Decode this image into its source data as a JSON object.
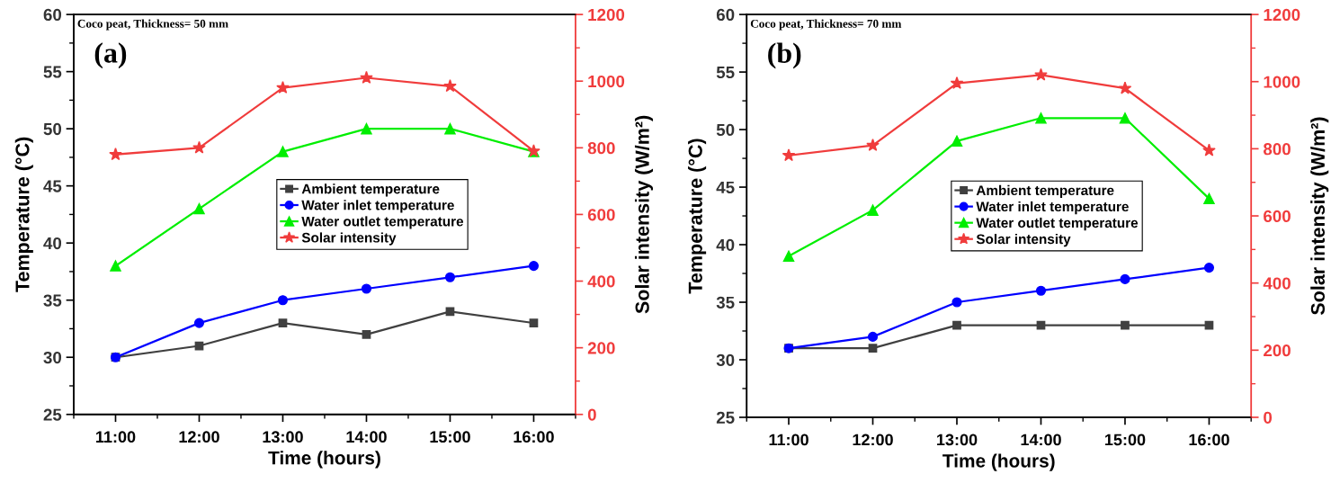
{
  "chart_data": [
    {
      "type": "line",
      "xlabel": "Time (hours)",
      "ylabel": "Temperature (°C)",
      "y2label": "Solar intensity (W/m²)",
      "annotations": [
        "Coco peat, Thickness= 50 mm",
        "(a)"
      ],
      "x": [
        11,
        12,
        13,
        14,
        15,
        16
      ],
      "xlim": [
        10.5,
        16.5
      ],
      "xticks": [
        {
          "value": 11,
          "label": "11:00"
        },
        {
          "value": 12,
          "label": "12:00"
        },
        {
          "value": 13,
          "label": "13:00"
        },
        {
          "value": 14,
          "label": "14:00"
        },
        {
          "value": 15,
          "label": "15:00"
        },
        {
          "value": 16,
          "label": "16:00"
        }
      ],
      "ylim": [
        25,
        60
      ],
      "yticks": [
        25,
        30,
        35,
        40,
        45,
        50,
        55,
        60
      ],
      "y2lim": [
        0,
        1200
      ],
      "y2ticks": [
        0,
        200,
        400,
        600,
        800,
        1000,
        1200
      ],
      "legend": "center",
      "line_style": "solid",
      "series": [
        {
          "name": "Ambient temperature",
          "color": "#404040",
          "marker": "square",
          "values": [
            30,
            31,
            33,
            32,
            34,
            33
          ]
        },
        {
          "name": "Water inlet temperature",
          "color": "#0000ff",
          "marker": "circle",
          "values": [
            30,
            33,
            35,
            36,
            37,
            38
          ]
        },
        {
          "name": "Water outlet temperature",
          "color": "#00ee00",
          "marker": "triangle",
          "values": [
            38,
            43,
            48,
            50,
            50,
            48
          ]
        },
        {
          "name": "Solar intensity",
          "color": "#f03c3c",
          "marker": "star",
          "axis": "y2",
          "values": [
            780,
            800,
            980,
            1010,
            985,
            790
          ]
        }
      ]
    },
    {
      "type": "line",
      "xlabel": "Time (hours)",
      "ylabel": "Temperature (°C)",
      "y2label": "Solar intensity (W/m²)",
      "annotations": [
        "Coco peat, Thickness= 70 mm",
        "(b)"
      ],
      "x": [
        11,
        12,
        13,
        14,
        15,
        16
      ],
      "xlim": [
        10.5,
        16.5
      ],
      "xticks": [
        {
          "value": 11,
          "label": "11:00"
        },
        {
          "value": 12,
          "label": "12:00"
        },
        {
          "value": 13,
          "label": "13:00"
        },
        {
          "value": 14,
          "label": "14:00"
        },
        {
          "value": 15,
          "label": "15:00"
        },
        {
          "value": 16,
          "label": "16:00"
        }
      ],
      "ylim": [
        25,
        60
      ],
      "yticks": [
        25,
        30,
        35,
        40,
        45,
        50,
        55,
        60
      ],
      "y2lim": [
        0,
        1200
      ],
      "y2ticks": [
        0,
        200,
        400,
        600,
        800,
        1000,
        1200
      ],
      "legend": "center",
      "line_style": "solid",
      "series": [
        {
          "name": "Ambient temperature",
          "color": "#404040",
          "marker": "square",
          "values": [
            31,
            31,
            33,
            33,
            33,
            33
          ]
        },
        {
          "name": "Water inlet temperature",
          "color": "#0000ff",
          "marker": "circle",
          "values": [
            31,
            32,
            35,
            36,
            37,
            38
          ]
        },
        {
          "name": "Water outlet temperature",
          "color": "#00ee00",
          "marker": "triangle",
          "values": [
            39,
            43,
            49,
            51,
            51,
            44
          ]
        },
        {
          "name": "Solar intensity",
          "color": "#f03c3c",
          "marker": "star",
          "axis": "y2",
          "values": [
            780,
            810,
            995,
            1020,
            980,
            795
          ]
        }
      ]
    }
  ]
}
